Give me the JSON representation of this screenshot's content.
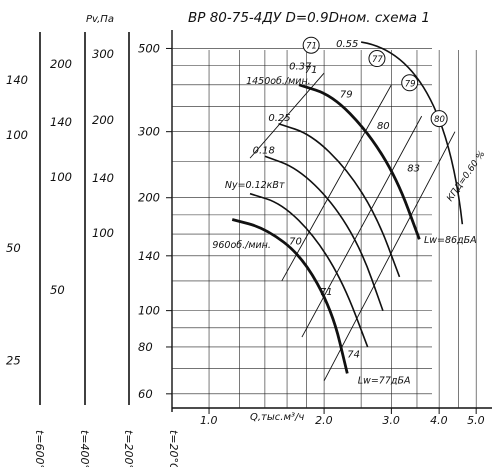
{
  "chart_data": {
    "type": "line",
    "title": "ВР 80-75-4ДУ D=0.9Dном. схема 1",
    "xlabel": "Q,тыс.м³/ч",
    "x_ticks": [
      "1.0",
      "2.0",
      "3.0",
      "4.0",
      "5.0"
    ],
    "x_range": [
      0.8,
      5.5
    ],
    "y_range_pa": [
      55,
      560
    ],
    "main_axis": {
      "label": "Pv,Па",
      "ticks": [
        "500",
        "300",
        "200",
        "140",
        "100",
        "80",
        "60"
      ],
      "bottom_label": "t=20°C"
    },
    "secondary_axes": [
      {
        "ticks": [
          "300",
          "200",
          "140",
          "100"
        ],
        "bottom_label": "t=200°C",
        "ratio": 0.62
      },
      {
        "ticks": [
          "200",
          "140",
          "100",
          "50"
        ],
        "bottom_label": "t=400°C",
        "ratio": 0.44
      },
      {
        "ticks": [
          "140",
          "100",
          "50",
          "25"
        ],
        "bottom_label": "t=600°C",
        "ratio": 0.34
      }
    ],
    "speed_curves": [
      {
        "name": "1450об./мин.",
        "points": [
          [
            1.72,
            400
          ],
          [
            2.1,
            375
          ],
          [
            2.6,
            300
          ],
          [
            3.1,
            225
          ],
          [
            3.55,
            155
          ]
        ]
      },
      {
        "name": "960об./мин.",
        "points": [
          [
            1.15,
            175
          ],
          [
            1.4,
            166
          ],
          [
            1.75,
            140
          ],
          [
            2.1,
            100
          ],
          [
            2.3,
            68
          ]
        ]
      }
    ],
    "power_curves": [
      {
        "name": "0.37",
        "points": [
          [
            1.72,
            400
          ],
          [
            2.1,
            375
          ],
          [
            2.6,
            300
          ],
          [
            3.1,
            225
          ],
          [
            3.55,
            155
          ]
        ]
      },
      {
        "name": "0.25",
        "points": [
          [
            1.52,
            315
          ],
          [
            1.85,
            295
          ],
          [
            2.3,
            238
          ],
          [
            2.75,
            178
          ],
          [
            3.15,
            123
          ]
        ]
      },
      {
        "name": "0.18",
        "points": [
          [
            1.4,
            258
          ],
          [
            1.7,
            240
          ],
          [
            2.1,
            195
          ],
          [
            2.5,
            146
          ],
          [
            2.85,
            100
          ]
        ]
      },
      {
        "name": "Ny=0.12кВт",
        "points": [
          [
            1.28,
            205
          ],
          [
            1.55,
            193
          ],
          [
            1.9,
            157
          ],
          [
            2.25,
            118
          ],
          [
            2.6,
            80
          ]
        ]
      }
    ],
    "efficiency_lines": [
      "71",
      "79",
      "80",
      "83"
    ],
    "efficiency_labels_on_curves": [
      "70",
      "71",
      "74"
    ],
    "efficiency_markers": [
      "71",
      "77",
      "79",
      "80"
    ],
    "efficiency_axis_label": "КПД=0.60 %",
    "efficiency_marker_value_top": "0.55",
    "noise_labels": [
      "Lw=86дБА",
      "Lw=77дБА"
    ]
  }
}
